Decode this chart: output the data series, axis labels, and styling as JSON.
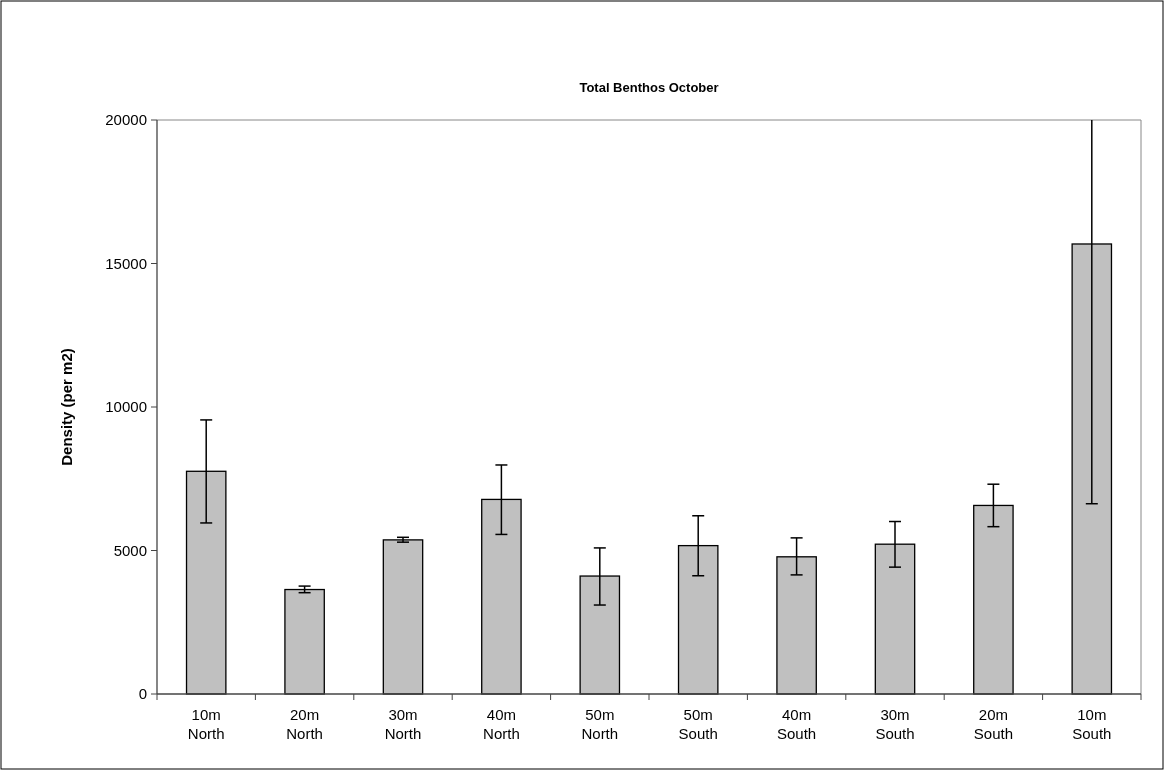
{
  "chart_data": {
    "type": "bar",
    "title": "Total Benthos October",
    "ylabel": "Density (per m2)",
    "categories": [
      "10m North",
      "20m North",
      "30m North",
      "40m North",
      "50m North",
      "50m South",
      "40m South",
      "30m South",
      "20m South",
      "10m South"
    ],
    "values": [
      7760,
      3640,
      5370,
      6780,
      4110,
      5170,
      4780,
      5220,
      6570,
      15680
    ],
    "errors": [
      [
        5960,
        9550
      ],
      [
        3530,
        3760
      ],
      [
        5290,
        5460
      ],
      [
        5560,
        7980
      ],
      [
        3100,
        5090
      ],
      [
        4120,
        6210
      ],
      [
        4150,
        5440
      ],
      [
        4420,
        6010
      ],
      [
        5830,
        7310
      ],
      [
        6630,
        20000
      ]
    ],
    "color": "#c0c0c0",
    "ylim": [
      0,
      20000
    ],
    "yticks": [
      0,
      5000,
      10000,
      15000,
      20000
    ],
    "grid": false
  }
}
